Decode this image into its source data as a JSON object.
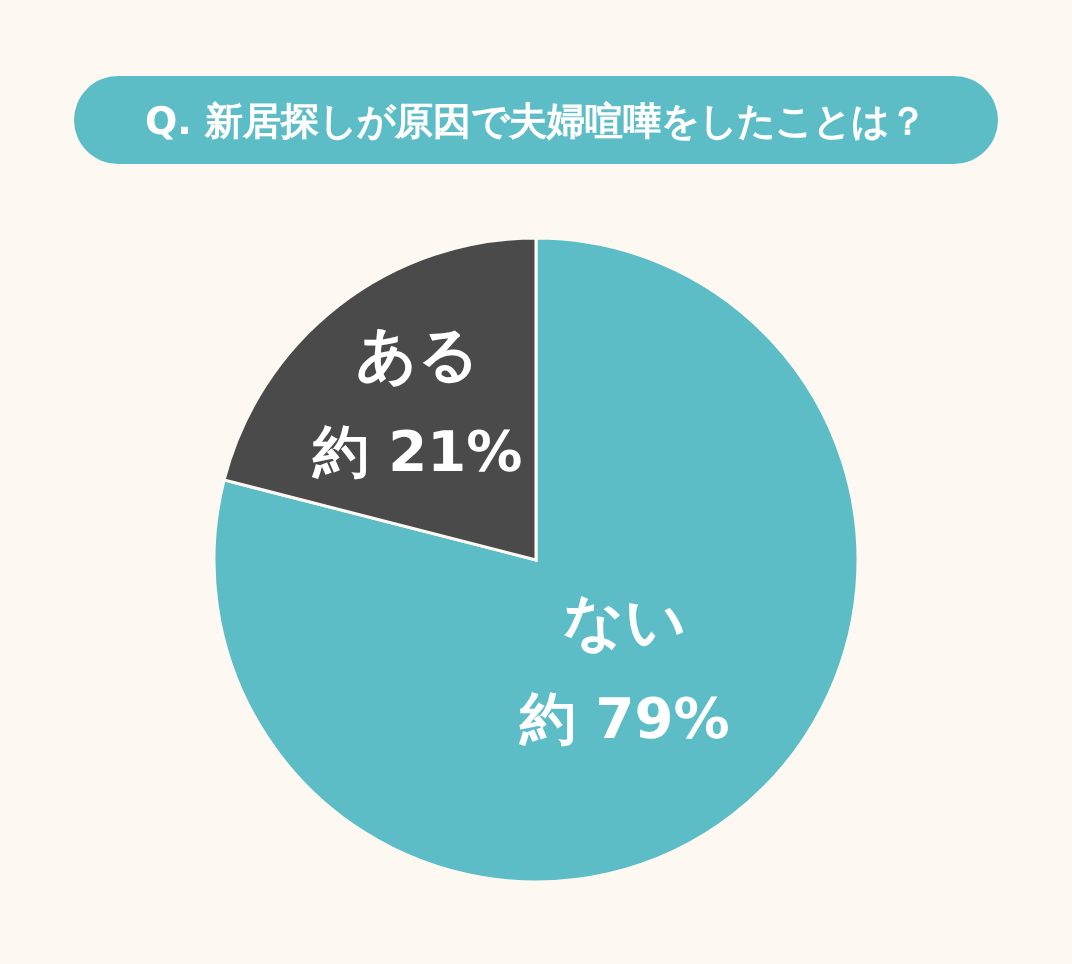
{
  "chart_data": {
    "type": "pie",
    "title": "Q. 新居探しが原因で夫婦喧嘩をしたことは？",
    "categories": [
      "ない",
      "ある"
    ],
    "values": [
      79,
      21
    ],
    "colors": [
      "#5dbdc6",
      "#4a4a4a"
    ],
    "value_labels": [
      "約 79%",
      "約 21%"
    ],
    "legend": false
  }
}
